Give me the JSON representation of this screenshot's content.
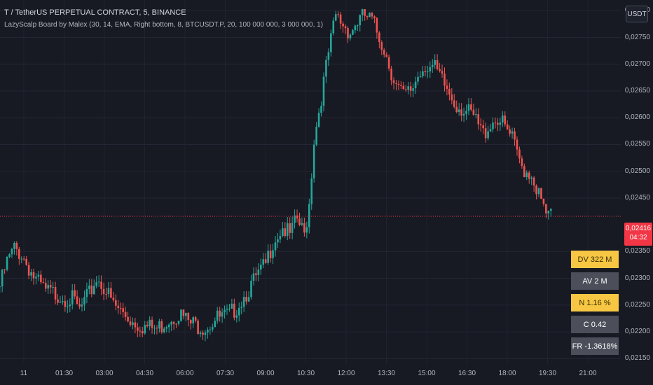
{
  "header": {
    "title": "T / TetherUS PERPETUAL CONTRACT, 5, BINANCE",
    "indicator": "LazyScalp Board by Malex (30, 14, EMA, Right bottom, 8, BTCUSDT.P, 20, 100 000 000, 3 000 000, 1)"
  },
  "currency_button": "USDT",
  "current_price": {
    "value": "0,02416",
    "countdown": "04:32",
    "color": "#f23645"
  },
  "colors": {
    "up": "#26a69a",
    "down": "#ef5350",
    "background": "#171a23",
    "board_yellow": "#f7c744",
    "board_gray": "#4c4f5a"
  },
  "board": [
    {
      "label": "DV 322 M",
      "style": "yellow"
    },
    {
      "label": "AV 2 M",
      "style": "gray"
    },
    {
      "label": "N 1.16 %",
      "style": "yellow"
    },
    {
      "label": "C  0.42",
      "style": "gray"
    },
    {
      "label": "FR -1.3618%",
      "style": "gray"
    }
  ],
  "chart_data": {
    "type": "candlestick",
    "x_ticks": [
      "11",
      "01:30",
      "03:00",
      "04:30",
      "06:00",
      "07:30",
      "09:00",
      "10:30",
      "12:00",
      "13:30",
      "15:00",
      "16:30",
      "18:00",
      "19:30",
      "21:00"
    ],
    "y_ticks": [
      "0,02800",
      "0,02750",
      "0,02700",
      "0,02650",
      "0,02600",
      "0,02550",
      "0,02500",
      "0,02450",
      "0,02350",
      "0,02300",
      "0,02250",
      "0,02200",
      "0,02150"
    ],
    "y_range": [
      0.0214,
      0.0282
    ],
    "last_price": 0.02416,
    "close_path": [
      [
        0,
        0.02285
      ],
      [
        3,
        0.0233
      ],
      [
        6,
        0.02355
      ],
      [
        9,
        0.02345
      ],
      [
        12,
        0.0232
      ],
      [
        15,
        0.02295
      ],
      [
        19,
        0.02275
      ],
      [
        24,
        0.0227
      ],
      [
        30,
        0.0226
      ],
      [
        33,
        0.0224
      ],
      [
        37,
        0.0227
      ],
      [
        40,
        0.023
      ],
      [
        43,
        0.02285
      ],
      [
        47,
        0.0225
      ],
      [
        51,
        0.02235
      ],
      [
        55,
        0.0222
      ],
      [
        60,
        0.0221
      ],
      [
        65,
        0.02205
      ],
      [
        70,
        0.02225
      ],
      [
        74,
        0.02235
      ],
      [
        79,
        0.02215
      ],
      [
        85,
        0.0221
      ],
      [
        90,
        0.02225
      ],
      [
        95,
        0.0223
      ],
      [
        100,
        0.0226
      ],
      [
        106,
        0.023
      ],
      [
        110,
        0.02325
      ],
      [
        113,
        0.0237
      ],
      [
        117,
        0.02395
      ],
      [
        120,
        0.0238
      ],
      [
        123,
        0.0241
      ],
      [
        126,
        0.0238
      ],
      [
        128,
        0.0244
      ],
      [
        130,
        0.0256
      ],
      [
        133,
        0.0264
      ],
      [
        136,
        0.0272
      ],
      [
        139,
        0.0279
      ],
      [
        142,
        0.02775
      ],
      [
        145,
        0.0276
      ],
      [
        148,
        0.0278
      ],
      [
        151,
        0.0279
      ],
      [
        154,
        0.0278
      ],
      [
        157,
        0.0275
      ],
      [
        159,
        0.0273
      ],
      [
        161,
        0.027
      ],
      [
        164,
        0.0266
      ],
      [
        167,
        0.0264
      ],
      [
        170,
        0.0265
      ],
      [
        173,
        0.0268
      ],
      [
        176,
        0.027
      ],
      [
        180,
        0.0269
      ],
      [
        184,
        0.0266
      ],
      [
        188,
        0.0263
      ],
      [
        192,
        0.02615
      ],
      [
        196,
        0.026
      ],
      [
        200,
        0.0257
      ],
      [
        203,
        0.0259
      ],
      [
        206,
        0.026
      ],
      [
        209,
        0.0258
      ],
      [
        212,
        0.0256
      ],
      [
        214,
        0.0253
      ],
      [
        216,
        0.0251
      ],
      [
        218,
        0.025
      ],
      [
        220,
        0.02495
      ],
      [
        222,
        0.0247
      ],
      [
        224,
        0.0244
      ],
      [
        226,
        0.0242
      ],
      [
        228,
        0.02415
      ]
    ]
  }
}
